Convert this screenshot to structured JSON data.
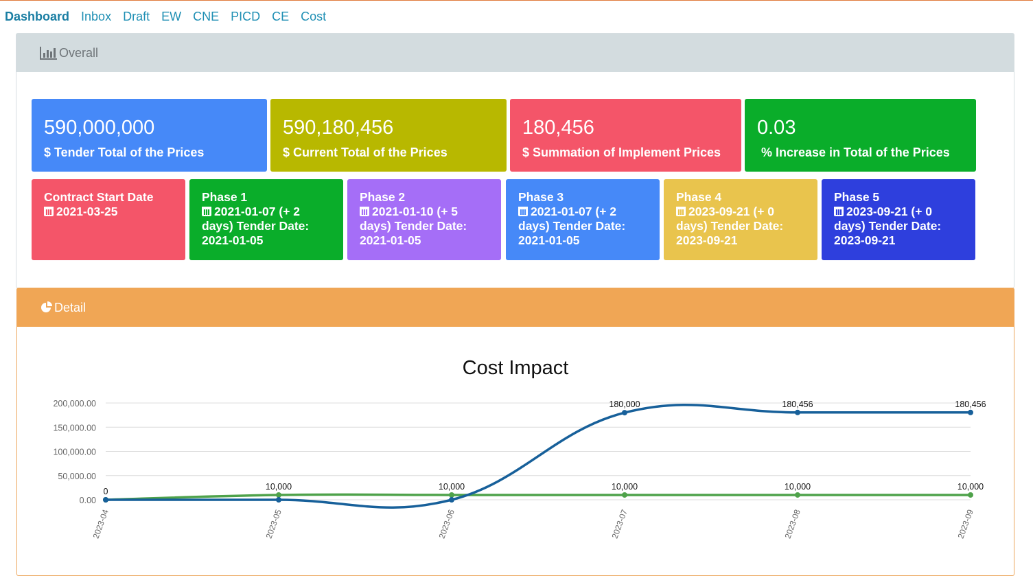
{
  "nav": {
    "items": [
      "Dashboard",
      "Inbox",
      "Draft",
      "EW",
      "CNE",
      "PICD",
      "CE",
      "Cost"
    ]
  },
  "overall": {
    "title": "Overall",
    "stats": [
      {
        "value": "590,000,000",
        "label": "$ Tender Total of the Prices",
        "color": "#4689f8"
      },
      {
        "value": "590,180,456",
        "label": "$ Current Total of the Prices",
        "color": "#b8b800"
      },
      {
        "value": "180,456",
        "label": "$ Summation of Implement Prices",
        "color": "#f45569"
      },
      {
        "value": "0.03",
        "label": "% Increase in Total of the Prices",
        "color": "#0aad2a"
      }
    ],
    "phases": [
      {
        "title": "Contract Start Date",
        "date": "2021-03-25",
        "rest": "",
        "color": "#f45569"
      },
      {
        "title": "Phase 1",
        "date": "2021-01-07 (+ 2",
        "rest": "days) Tender Date: 2021-01-05",
        "color": "#0aad2a"
      },
      {
        "title": "Phase 2",
        "date": "2021-01-10 (+ 5",
        "rest": "days) Tender Date: 2021-01-05",
        "color": "#a56ef7"
      },
      {
        "title": "Phase 3",
        "date": "2021-01-07 (+ 2",
        "rest": "days) Tender Date: 2021-01-05",
        "color": "#4689f8"
      },
      {
        "title": "Phase 4",
        "date": "2023-09-21 (+ 0",
        "rest": "days) Tender Date: 2023-09-21",
        "color": "#e9c44d"
      },
      {
        "title": "Phase 5",
        "date": "2023-09-21 (+ 0",
        "rest": "days) Tender Date: 2023-09-21",
        "color": "#2e3fdd"
      }
    ]
  },
  "detail": {
    "title": "Detail"
  },
  "chart_data": {
    "type": "line",
    "title": "Cost Impact",
    "xlabel": "",
    "ylabel": "",
    "categories": [
      "2023-04",
      "2023-05",
      "2023-06",
      "2023-07",
      "2023-08",
      "2023-09"
    ],
    "ylim": [
      0,
      200000
    ],
    "yticks": [
      "200,000.00",
      "150,000.00",
      "100,000.00",
      "50,000.00",
      "0.00"
    ],
    "ytick_values": [
      200000,
      150000,
      100000,
      50000,
      0
    ],
    "grid": true,
    "series": [
      {
        "values": [
          0,
          0,
          0,
          180000,
          180456,
          180456
        ],
        "labels": [
          "",
          "",
          "",
          "180,000",
          "180,456",
          "180,456"
        ],
        "color": "#17609a"
      },
      {
        "values": [
          0,
          10000,
          10000,
          10000,
          10000,
          10000
        ],
        "labels": [
          "0",
          "10,000",
          "10,000",
          "10,000",
          "10,000",
          "10,000"
        ],
        "color": "#4ea24a"
      }
    ]
  }
}
